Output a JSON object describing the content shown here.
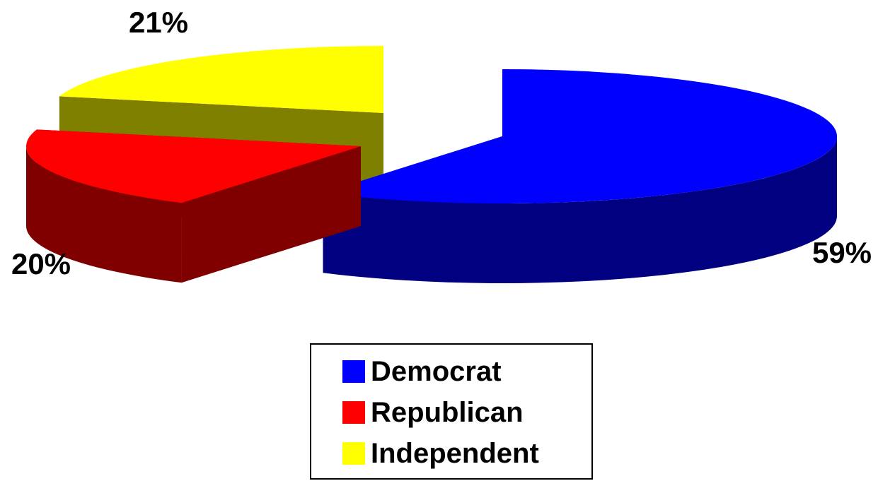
{
  "chart_data": {
    "type": "pie",
    "style": "3d-exploded",
    "title": "",
    "categories": [
      "Democrat",
      "Republican",
      "Independent"
    ],
    "values": [
      59,
      20,
      21
    ],
    "data_labels": [
      "59%",
      "20%",
      "21%"
    ],
    "colors": {
      "Democrat": {
        "top": "#0000FF",
        "side": "#000080"
      },
      "Republican": {
        "top": "#FF0000",
        "side": "#800000"
      },
      "Independent": {
        "top": "#FFFF00",
        "side": "#808000"
      }
    },
    "legend": {
      "placement": "bottom",
      "entries": [
        {
          "label": "Democrat",
          "color": "#0000FF"
        },
        {
          "label": "Republican",
          "color": "#FF0000"
        },
        {
          "label": "Independent",
          "color": "#FFFF00"
        }
      ]
    }
  }
}
